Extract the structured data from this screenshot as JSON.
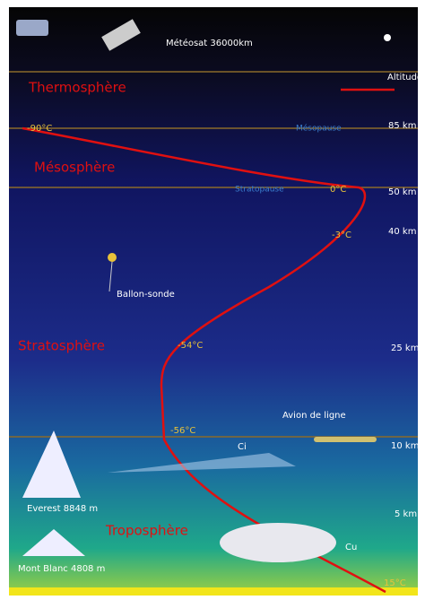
{
  "header": {
    "satellite": "Météosat 36000km",
    "altitude": "Altitude"
  },
  "layers": {
    "thermosphere": "Thermosphère",
    "mesopause": "Mésopause",
    "mesosphere": "Mésosphère",
    "stratopause": "Stratopause",
    "stratosphere": "Stratosphère",
    "troposphere": "Troposphère"
  },
  "altitudes": [
    "85 km",
    "50 km",
    "40 km",
    "25 km",
    "10 km",
    "5 km"
  ],
  "temperatures": [
    "-90°C",
    "0°C",
    "-3°C",
    "-54°C",
    "-56°C",
    "15°C"
  ],
  "objects": {
    "balloon": "Ballon-sonde",
    "plane": "Avion de ligne",
    "cirrus": "Ci",
    "cumulus": "Cu",
    "everest": "Everest 8848 m",
    "montblanc": "Mont Blanc 4808 m"
  }
}
